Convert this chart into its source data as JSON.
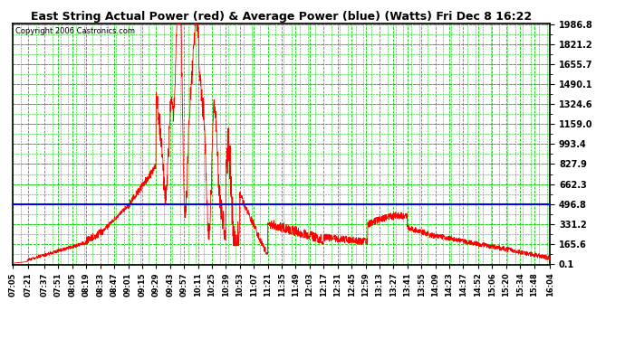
{
  "title": "East String Actual Power (red) & Average Power (blue) (Watts) Fri Dec 8 16:22",
  "copyright": "Copyright 2006 Castronics.com",
  "yticks": [
    0.1,
    165.6,
    331.2,
    496.8,
    662.3,
    827.9,
    993.4,
    1159.0,
    1324.6,
    1490.1,
    1655.7,
    1821.2,
    1986.8
  ],
  "ymin": 0.1,
  "ymax": 1986.8,
  "avg_power": 496.8,
  "bg_color": "#ffffff",
  "grid_color": "#00cc00",
  "line_color_actual": "#ff0000",
  "line_color_avg": "#0000ff",
  "xtick_labels": [
    "07:05",
    "07:21",
    "07:37",
    "07:51",
    "08:05",
    "08:19",
    "08:33",
    "08:47",
    "09:01",
    "09:15",
    "09:29",
    "09:43",
    "09:57",
    "10:11",
    "10:25",
    "10:39",
    "10:53",
    "11:07",
    "11:21",
    "11:35",
    "11:49",
    "12:03",
    "12:17",
    "12:31",
    "12:45",
    "12:59",
    "13:13",
    "13:27",
    "13:41",
    "13:55",
    "14:09",
    "14:23",
    "14:37",
    "14:52",
    "15:06",
    "15:20",
    "15:34",
    "15:48",
    "16:04"
  ]
}
